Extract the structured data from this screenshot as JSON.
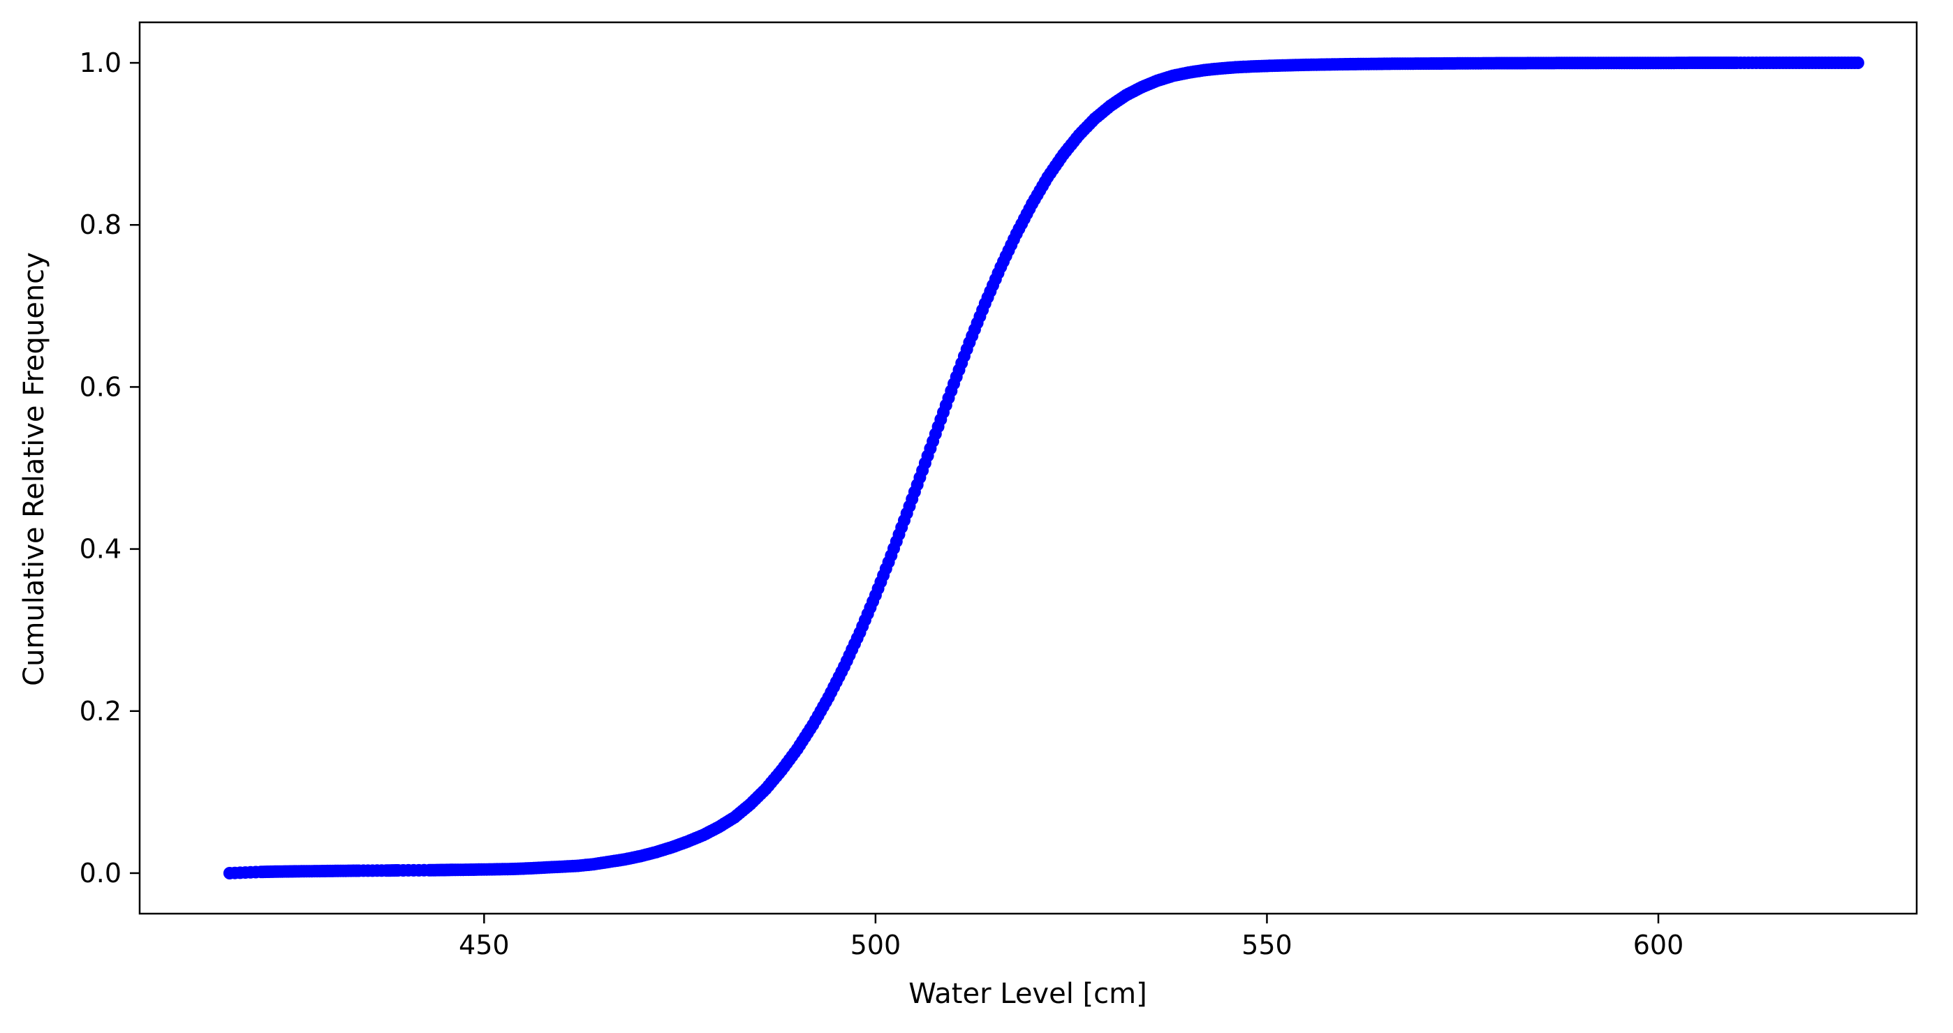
{
  "chart_data": {
    "type": "scatter",
    "title": "",
    "xlabel": "Water Level [cm]",
    "ylabel": "Cumulative Relative Frequency",
    "xlim": [
      406,
      633
    ],
    "ylim": [
      -0.05,
      1.05
    ],
    "xticks": [
      {
        "value": 450,
        "label": "450"
      },
      {
        "value": 500,
        "label": "500"
      },
      {
        "value": 550,
        "label": "550"
      },
      {
        "value": 600,
        "label": "600"
      }
    ],
    "yticks": [
      {
        "value": 0.0,
        "label": "0.0"
      },
      {
        "value": 0.2,
        "label": "0.2"
      },
      {
        "value": 0.4,
        "label": "0.4"
      },
      {
        "value": 0.6,
        "label": "0.6"
      },
      {
        "value": 0.8,
        "label": "0.8"
      },
      {
        "value": 1.0,
        "label": "1.0"
      }
    ],
    "grid": false,
    "legend": "none",
    "marker_color": "#0000ff",
    "series": [
      {
        "x": [
          417.5,
          421.5,
          423.0,
          424.5,
          426.0,
          428.0,
          430.0,
          432.0,
          434.0,
          437.5,
          439.0,
          443.0,
          444.5,
          446.0,
          448.0,
          450.0,
          452.0,
          454.0,
          456.0,
          458.0,
          460.0,
          462.0,
          464.0,
          466.0,
          468.0,
          470.0,
          472.0,
          474.0,
          476.0,
          478.0,
          480.0,
          482.0,
          484.0,
          486.0,
          488.0,
          490.0,
          492.0,
          494.0,
          496.0,
          498.0,
          500.0,
          502.0,
          504.0,
          506.0,
          508.0,
          510.0,
          512.0,
          514.0,
          516.0,
          518.0,
          520.0,
          522.0,
          524.0,
          526.0,
          528.0,
          530.0,
          532.0,
          534.0,
          536.0,
          538.0,
          540.0,
          542.0,
          544.0,
          546.0,
          548.0,
          550.0,
          552.0,
          554.0,
          556.0,
          558.0,
          560.0,
          562.0,
          564.0,
          566.0,
          568.0,
          570.0,
          572.0,
          574.0,
          576.0,
          578.0,
          580.0,
          582.0,
          584.0,
          586.0,
          588.0,
          590.0,
          592.0,
          594.0,
          596.0,
          598.0,
          600.0,
          602.0,
          604.0,
          606.0,
          608.0,
          610.0,
          613.0,
          615.5,
          618.0,
          620.5,
          623.0,
          625.5
        ],
        "y": [
          0.0,
          0.0015,
          0.0018,
          0.002,
          0.0022,
          0.0024,
          0.0026,
          0.0028,
          0.003,
          0.0032,
          0.0034,
          0.0036,
          0.0038,
          0.004,
          0.0042,
          0.0045,
          0.0048,
          0.0052,
          0.006,
          0.007,
          0.008,
          0.009,
          0.011,
          0.014,
          0.017,
          0.021,
          0.026,
          0.032,
          0.039,
          0.047,
          0.057,
          0.069,
          0.085,
          0.104,
          0.127,
          0.153,
          0.183,
          0.217,
          0.255,
          0.297,
          0.343,
          0.392,
          0.444,
          0.497,
          0.551,
          0.604,
          0.655,
          0.703,
          0.748,
          0.789,
          0.826,
          0.859,
          0.887,
          0.911,
          0.931,
          0.947,
          0.96,
          0.97,
          0.978,
          0.984,
          0.988,
          0.991,
          0.993,
          0.9945,
          0.9955,
          0.9962,
          0.9968,
          0.9973,
          0.9977,
          0.998,
          0.9983,
          0.9985,
          0.9987,
          0.9989,
          0.999,
          0.9991,
          0.9992,
          0.9993,
          0.9994,
          0.9995,
          0.9996,
          0.9996,
          0.9997,
          0.9997,
          0.9998,
          0.9998,
          0.9998,
          0.9999,
          0.9999,
          0.9999,
          0.9999,
          0.9999,
          1.0,
          1.0,
          1.0,
          1.0,
          1.0,
          1.0,
          1.0,
          1.0,
          1.0,
          1.0
        ]
      }
    ]
  }
}
